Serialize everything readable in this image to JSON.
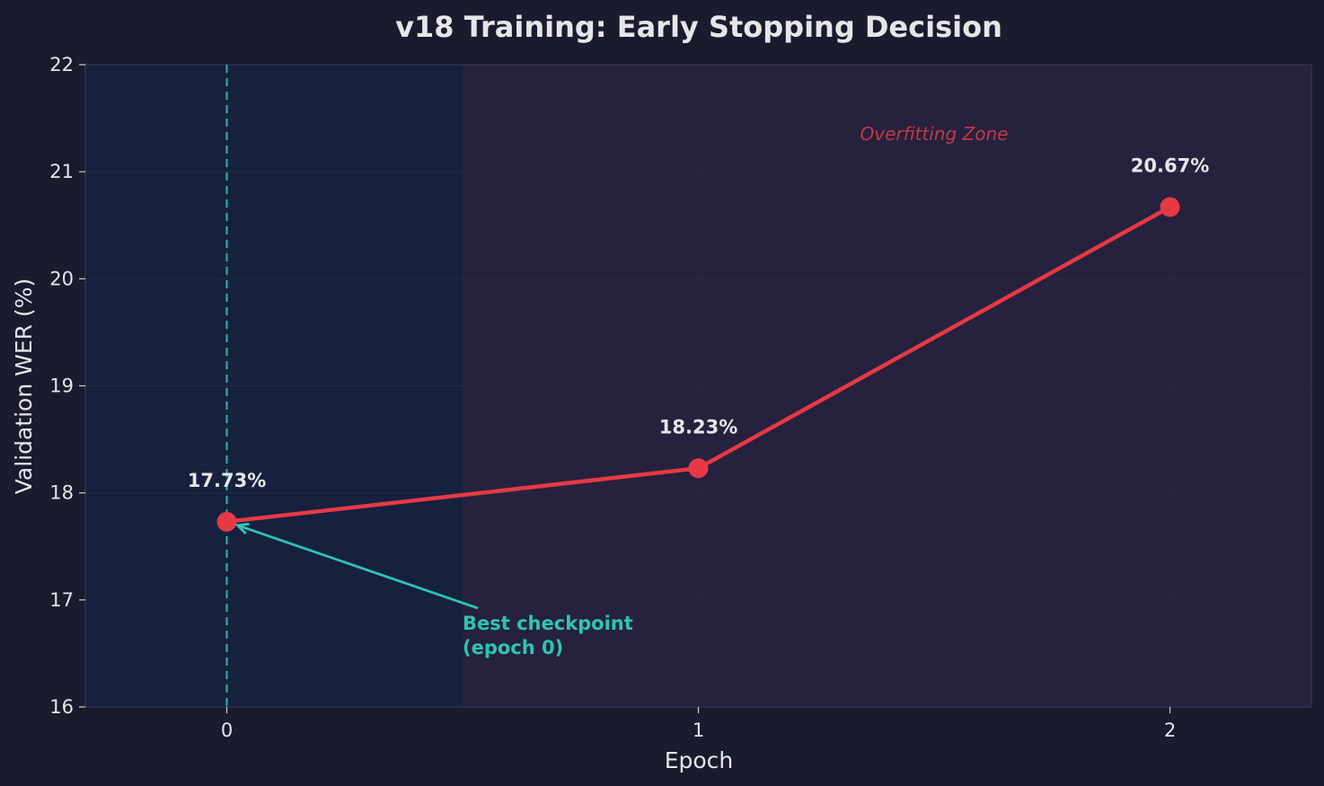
{
  "chart_data": {
    "type": "line",
    "title": "v18 Training: Early Stopping Decision",
    "xlabel": "Epoch",
    "ylabel": "Validation WER (%)",
    "x": [
      0,
      1,
      2
    ],
    "xticks": [
      "0",
      "1",
      "2"
    ],
    "xlim": [
      -0.3,
      2.3
    ],
    "ylim": [
      16,
      22
    ],
    "yticks": [
      "16",
      "17",
      "18",
      "19",
      "20",
      "21",
      "22"
    ],
    "grid": true,
    "series": [
      {
        "values": [
          17.73,
          18.23,
          20.67
        ],
        "labels": [
          "17.73%",
          "18.23%",
          "20.67%"
        ],
        "color": "#e63946"
      }
    ],
    "best_epoch": 0,
    "best_line_color": "#2ec4b6",
    "annotation": {
      "lines": [
        "Best checkpoint",
        "(epoch 0)"
      ],
      "color": "#2ec4b6",
      "target_epoch": 0
    },
    "zones": {
      "safe": {
        "x_range": [
          -0.3,
          0.5
        ],
        "color": "#15213d"
      },
      "overfit": {
        "x_range": [
          0.5,
          2.3
        ],
        "color": "#26213d",
        "label": "Overfitting Zone",
        "label_color": "#c0394b"
      }
    }
  }
}
